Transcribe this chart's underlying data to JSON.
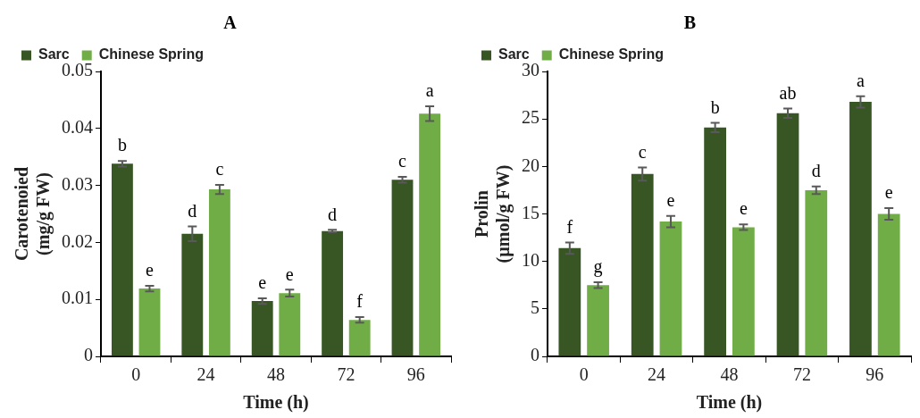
{
  "chart_data": [
    {
      "type": "bar",
      "title": "A",
      "xlabel": "Time (h)",
      "ylabel": "Carotenoied\n(mg/g FW)",
      "categories": [
        "0",
        "24",
        "48",
        "72",
        "96"
      ],
      "series": [
        {
          "name": "Sarc",
          "color": "#375623",
          "values": [
            0.0338,
            0.0215,
            0.0097,
            0.022,
            0.031
          ],
          "errors": [
            0.0005,
            0.0013,
            0.0005,
            0.0002,
            0.0005
          ]
        },
        {
          "name": "Chinese Spring",
          "color": "#70ad47",
          "values": [
            0.0119,
            0.0293,
            0.0111,
            0.0064,
            0.0426
          ],
          "errors": [
            0.0005,
            0.0008,
            0.0006,
            0.0005,
            0.0013
          ]
        }
      ],
      "ylim": [
        0,
        0.05
      ],
      "yticks": [
        0,
        0.01,
        0.02,
        0.03,
        0.04,
        0.05
      ],
      "grid": false,
      "legend": "top",
      "annotations": [
        {
          "text": "b",
          "x": "0",
          "y": 0.0338
        },
        {
          "text": "e",
          "x": "0",
          "y": 0.0119
        },
        {
          "text": "d",
          "x": "24",
          "y": 0.0215
        },
        {
          "text": "c",
          "x": "24",
          "y": 0.0293
        },
        {
          "text": "e",
          "x": "48",
          "y": 0.0097
        },
        {
          "text": "e",
          "x": "48",
          "y": 0.0111
        },
        {
          "text": "d",
          "x": "72",
          "y": 0.022
        },
        {
          "text": "f",
          "x": "72",
          "y": 0.0064
        },
        {
          "text": "c",
          "x": "96",
          "y": 0.031
        },
        {
          "text": "a",
          "x": "96",
          "y": 0.0426
        }
      ]
    },
    {
      "type": "bar",
      "title": "B",
      "xlabel": "Time (h)",
      "ylabel": "Prolin\n(µmol/g FW)",
      "categories": [
        "0",
        "24",
        "48",
        "72",
        "96"
      ],
      "series": [
        {
          "name": "Sarc",
          "color": "#375623",
          "values": [
            11.4,
            19.2,
            24.1,
            25.6,
            26.8
          ],
          "errors": [
            0.6,
            0.7,
            0.5,
            0.5,
            0.6
          ]
        },
        {
          "name": "Chinese Spring",
          "color": "#70ad47",
          "values": [
            7.5,
            14.2,
            13.6,
            17.5,
            15.0
          ],
          "errors": [
            0.3,
            0.6,
            0.3,
            0.4,
            0.6
          ]
        }
      ],
      "ylim": [
        0,
        30
      ],
      "yticks": [
        0,
        5,
        10,
        15,
        20,
        25,
        30
      ],
      "grid": false,
      "legend": "top",
      "annotations": [
        {
          "text": "f",
          "x": "0",
          "y": 11.4
        },
        {
          "text": "g",
          "x": "0",
          "y": 7.5
        },
        {
          "text": "c",
          "x": "24",
          "y": 19.2
        },
        {
          "text": "e",
          "x": "24",
          "y": 14.2
        },
        {
          "text": "b",
          "x": "48",
          "y": 24.1
        },
        {
          "text": "e",
          "x": "48",
          "y": 13.6
        },
        {
          "text": "ab",
          "x": "72",
          "y": 25.6
        },
        {
          "text": "d",
          "x": "72",
          "y": 17.5
        },
        {
          "text": "a",
          "x": "96",
          "y": 26.8
        },
        {
          "text": "e",
          "x": "96",
          "y": 15.0
        }
      ]
    }
  ]
}
